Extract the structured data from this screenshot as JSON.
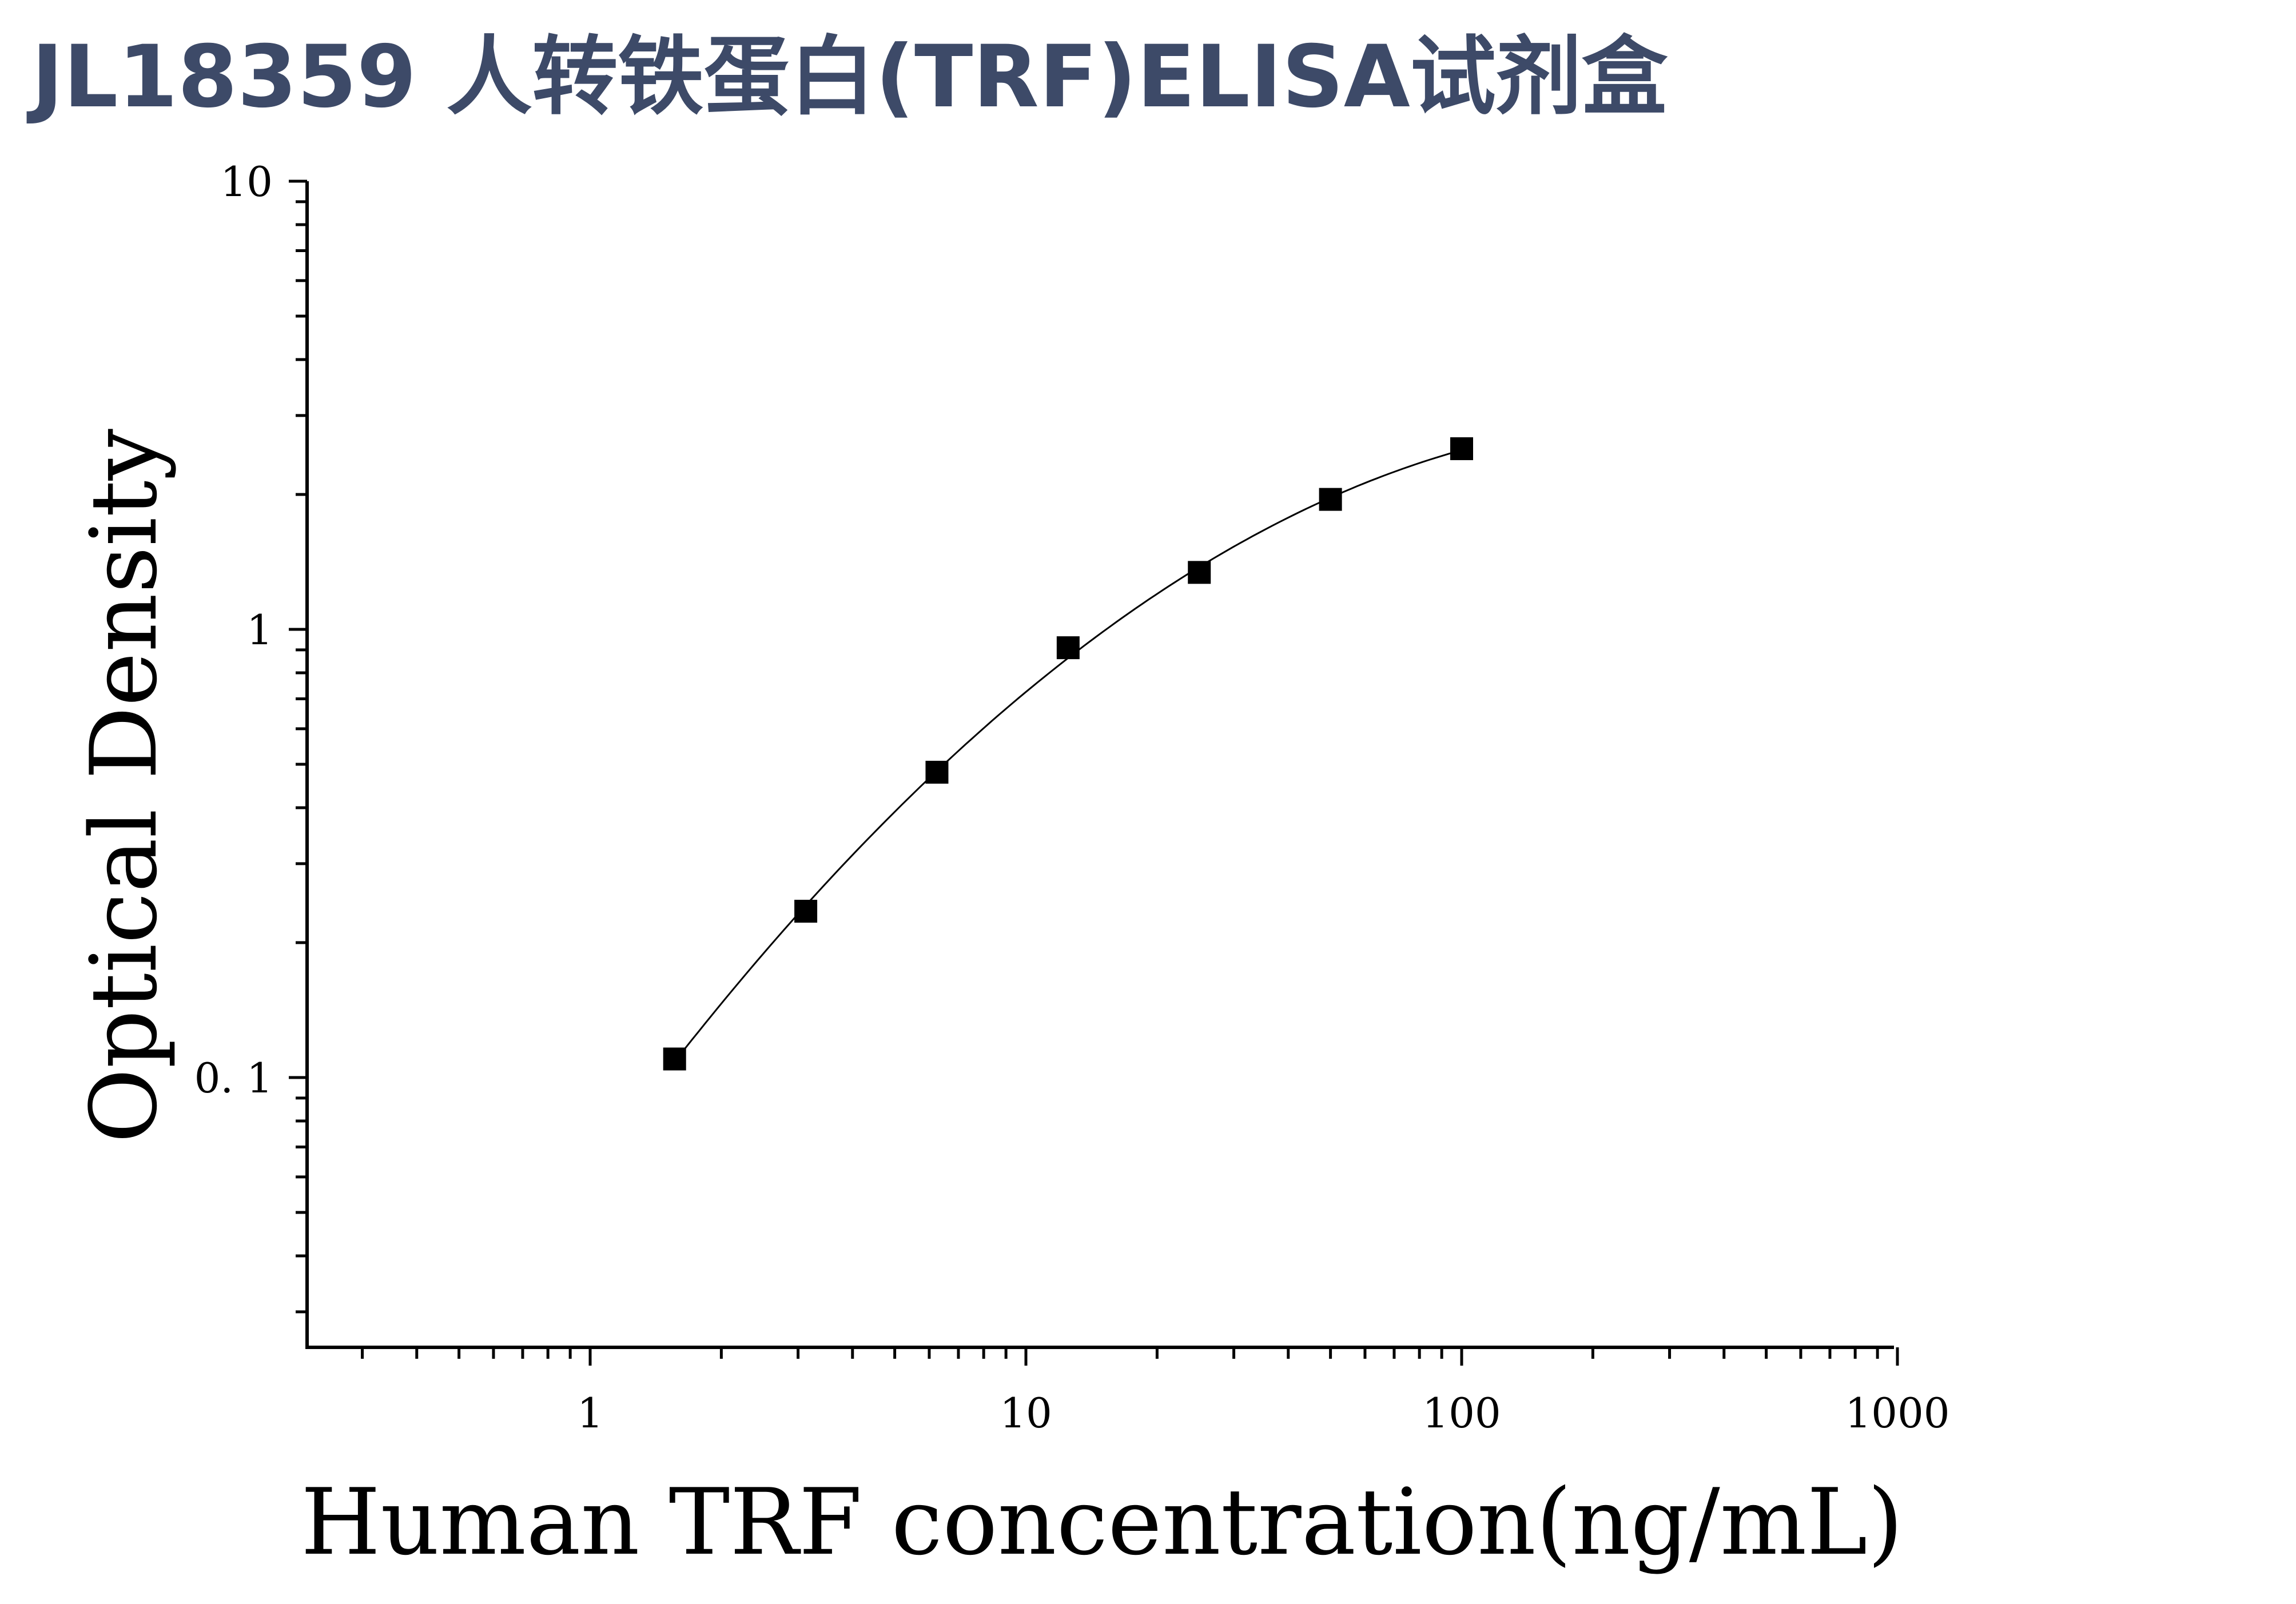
{
  "title": "JL18359 人转铁蛋白(TRF)ELISA试剂盒",
  "colors": {
    "title": "#3d4a68",
    "axis": "#000000",
    "marker": "#000000",
    "curve": "#000000"
  },
  "chart_data": {
    "type": "scatter",
    "title": "JL18359 人转铁蛋白(TRF)ELISA试剂盒",
    "xlabel": "Human TRF concentration(ng/mL)",
    "ylabel": "Optical Density",
    "x_scale": "log",
    "y_scale": "log",
    "xlim": [
      0.23,
      1000
    ],
    "ylim": [
      0.03,
      10
    ],
    "x_ticks": [
      1,
      10,
      100,
      1000
    ],
    "x_tick_labels": [
      "1",
      "10",
      "100",
      "1000"
    ],
    "y_ticks": [
      0.1,
      1,
      10
    ],
    "y_tick_labels": [
      "0. 1",
      "1",
      "10"
    ],
    "grid": false,
    "legend": "none",
    "series": [
      {
        "marker": "square",
        "x": [
          1.5625,
          3.125,
          6.25,
          12.5,
          25,
          50,
          100
        ],
        "y": [
          0.11,
          0.235,
          0.48,
          0.91,
          1.34,
          1.95,
          2.53
        ]
      }
    ],
    "fit_curve": {
      "style": "line",
      "x_range": [
        1.6,
        100
      ]
    }
  }
}
